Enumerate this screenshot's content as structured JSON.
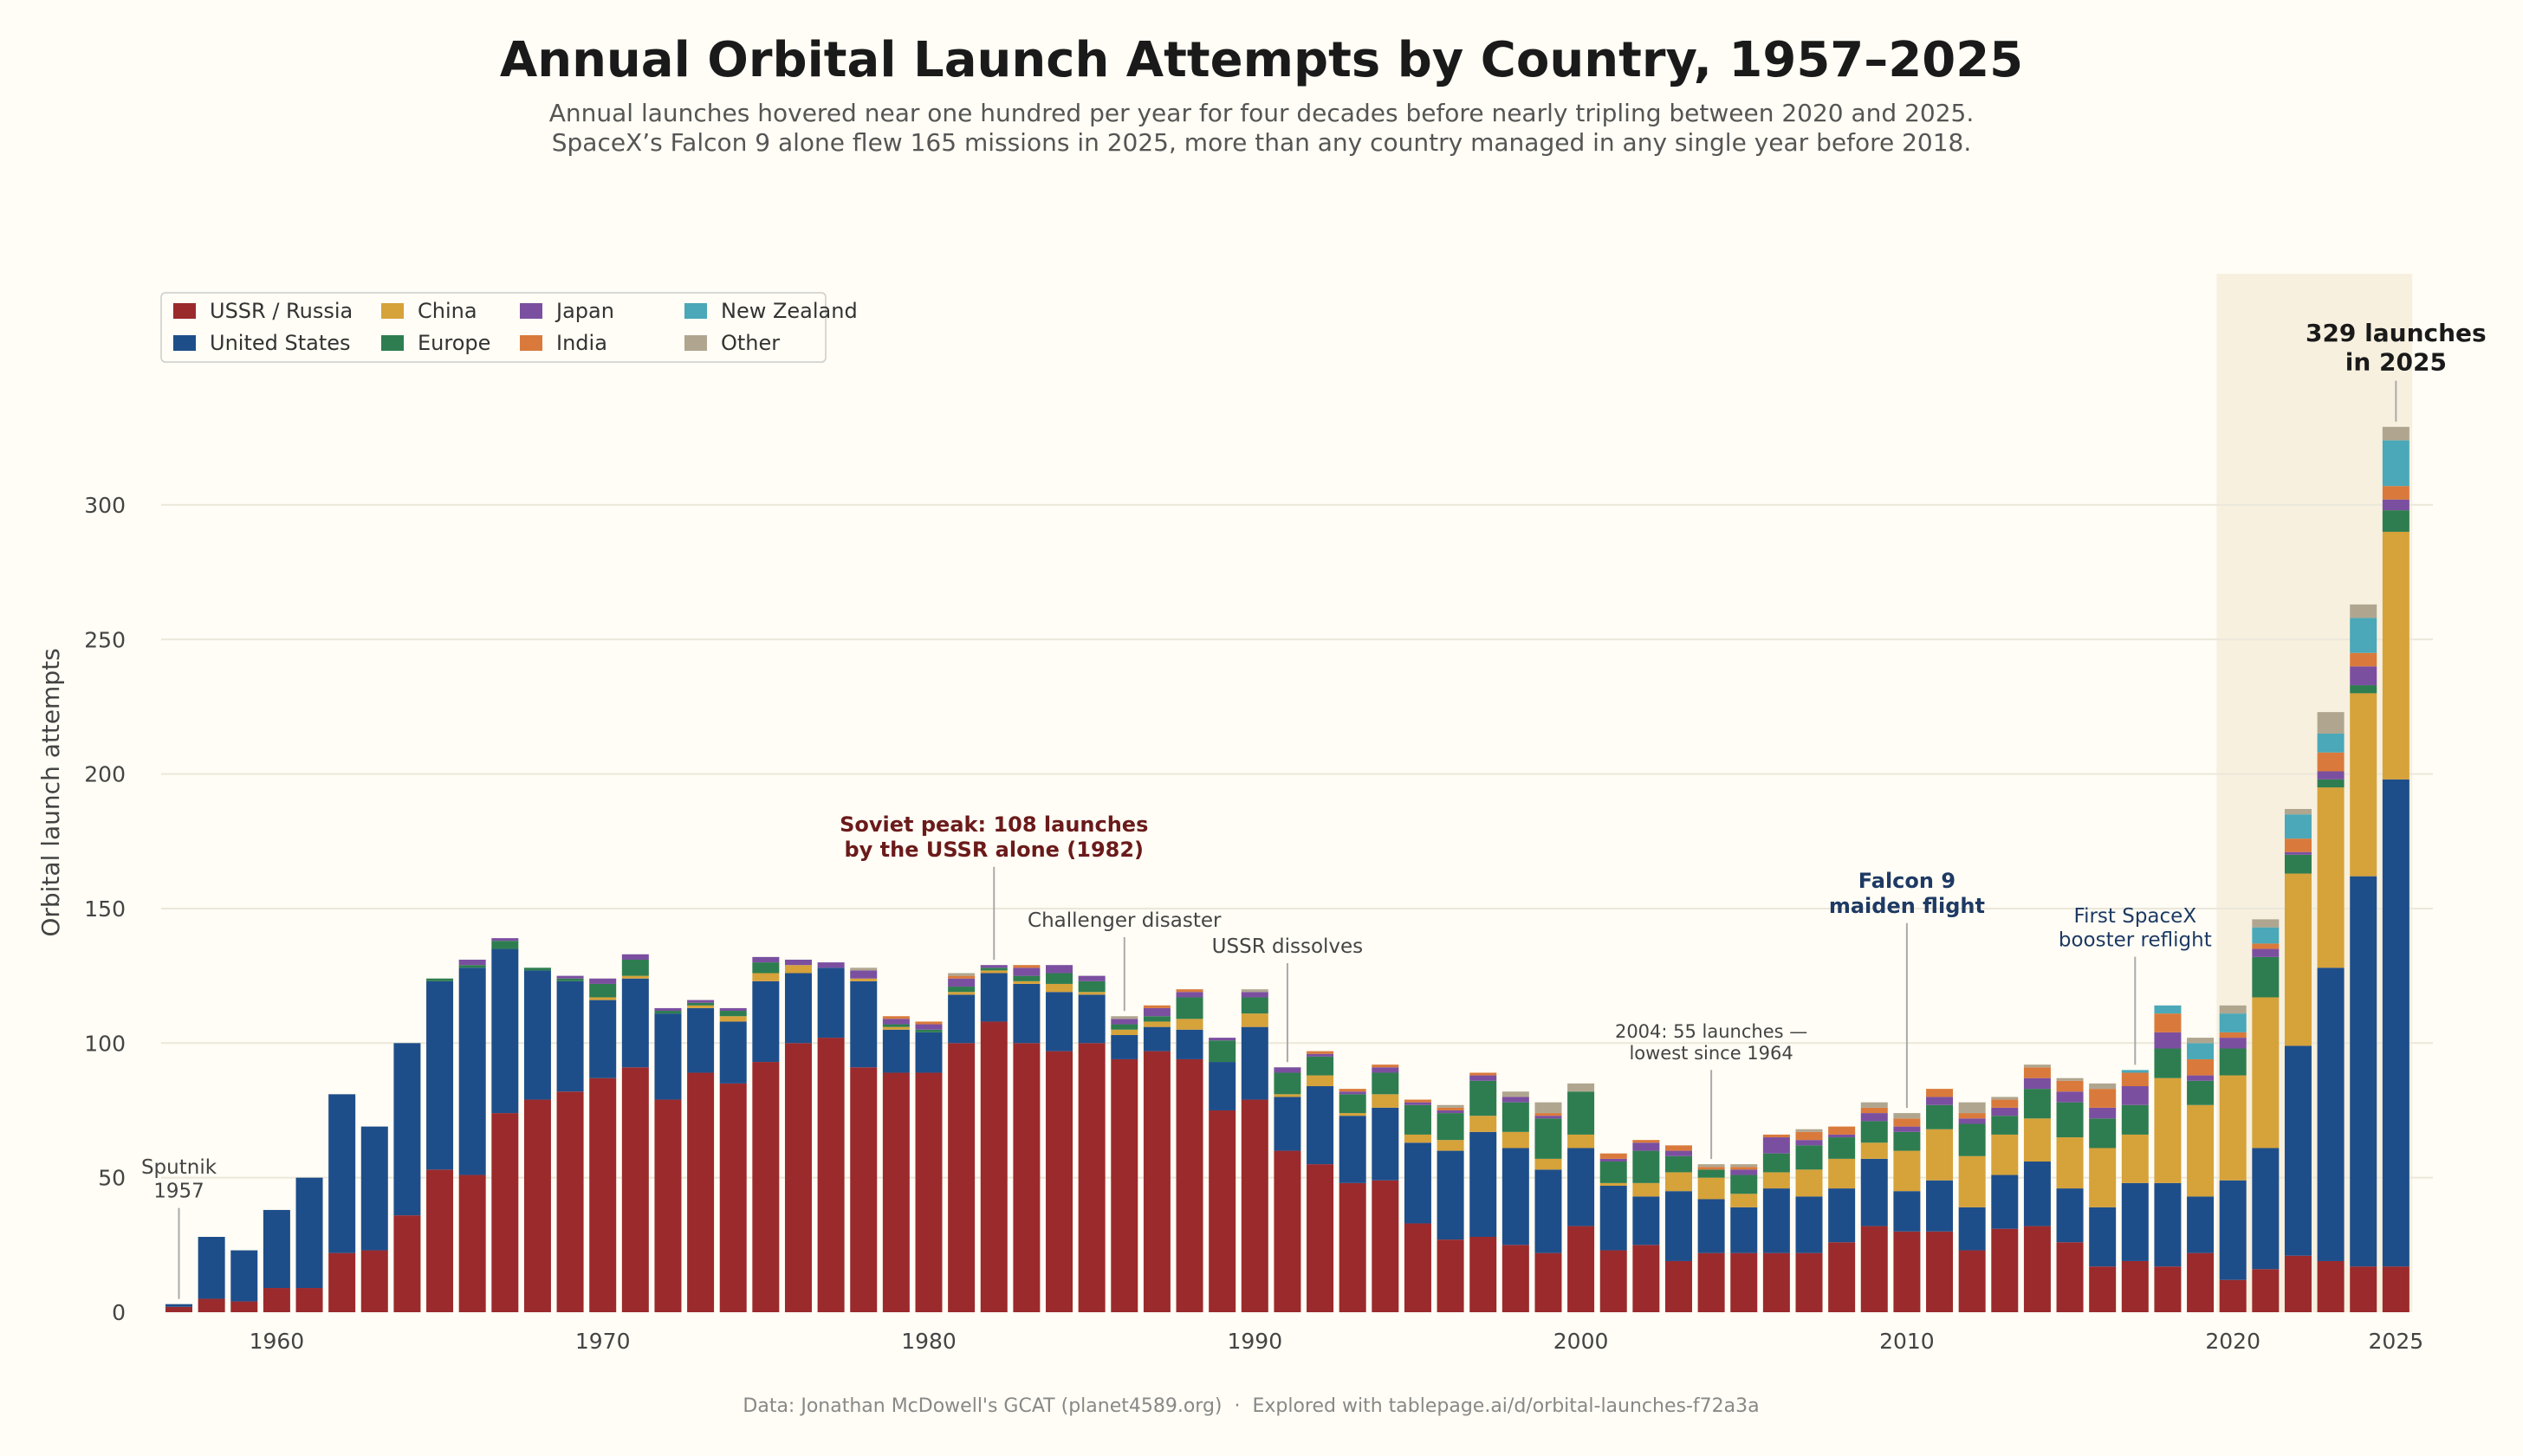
{
  "chart_data": {
    "type": "bar",
    "stacked": true,
    "title": "Annual Orbital Launch Attempts by Country, 1957–2025",
    "subtitle": [
      "Annual launches hovered near one hundred per year for four decades before nearly tripling between 2020 and 2025.",
      "SpaceX’s Falcon 9 alone flew 165 missions in 2025, more than any country managed in any single year before 2018."
    ],
    "ylabel": "Orbital launch attempts",
    "xlabel": "",
    "ylim": [
      0,
      350
    ],
    "xlim": [
      1956.5,
      2025.5
    ],
    "yticks": [
      0,
      50,
      100,
      150,
      200,
      250,
      300
    ],
    "xticks": [
      1960,
      1970,
      1980,
      1990,
      2000,
      2010,
      2020,
      2025
    ],
    "grid": "horizontal",
    "legend_placement": "top-left",
    "highlight_range": [
      2020,
      2025
    ],
    "footer": "Data: Jonathan McDowell's GCAT (planet4589.org)  ·  Explored with tablepage.ai/d/orbital-launches-f72a3a",
    "series": [
      {
        "name": "USSR / Russia",
        "color": "#9b2a2c"
      },
      {
        "name": "United States",
        "color": "#1e4e8a"
      },
      {
        "name": "China",
        "color": "#d6a23a"
      },
      {
        "name": "Europe",
        "color": "#2e7d50"
      },
      {
        "name": "Japan",
        "color": "#7b4fa0"
      },
      {
        "name": "India",
        "color": "#d97a3c"
      },
      {
        "name": "New Zealand",
        "color": "#4aa8b8"
      },
      {
        "name": "Other",
        "color": "#b0a690"
      }
    ],
    "years_start": 1957,
    "values": [
      [
        2,
        1,
        0,
        0,
        0,
        0,
        0,
        0
      ],
      [
        5,
        23,
        0,
        0,
        0,
        0,
        0,
        0
      ],
      [
        4,
        19,
        0,
        0,
        0,
        0,
        0,
        0
      ],
      [
        9,
        29,
        0,
        0,
        0,
        0,
        0,
        0
      ],
      [
        9,
        41,
        0,
        0,
        0,
        0,
        0,
        0
      ],
      [
        22,
        59,
        0,
        0,
        0,
        0,
        0,
        0
      ],
      [
        23,
        46,
        0,
        0,
        0,
        0,
        0,
        0
      ],
      [
        36,
        64,
        0,
        0,
        0,
        0,
        0,
        0
      ],
      [
        53,
        70,
        0,
        1,
        0,
        0,
        0,
        0
      ],
      [
        51,
        77,
        0,
        1,
        2,
        0,
        0,
        0
      ],
      [
        74,
        61,
        0,
        3,
        1,
        0,
        0,
        0
      ],
      [
        79,
        48,
        0,
        1,
        0,
        0,
        0,
        0
      ],
      [
        82,
        41,
        0,
        1,
        1,
        0,
        0,
        0
      ],
      [
        87,
        29,
        1,
        5,
        2,
        0,
        0,
        0
      ],
      [
        91,
        33,
        1,
        6,
        2,
        0,
        0,
        0
      ],
      [
        79,
        32,
        0,
        1,
        1,
        0,
        0,
        0
      ],
      [
        89,
        24,
        1,
        1,
        1,
        0,
        0,
        0
      ],
      [
        85,
        23,
        2,
        2,
        1,
        0,
        0,
        0
      ],
      [
        93,
        30,
        3,
        4,
        2,
        0,
        0,
        0
      ],
      [
        100,
        26,
        3,
        0,
        2,
        0,
        0,
        0
      ],
      [
        102,
        26,
        0,
        0,
        2,
        0,
        0,
        0
      ],
      [
        91,
        32,
        1,
        0,
        3,
        0,
        0,
        1
      ],
      [
        89,
        16,
        1,
        1,
        2,
        1,
        0,
        0
      ],
      [
        89,
        15,
        0,
        1,
        2,
        1,
        0,
        0
      ],
      [
        100,
        18,
        1,
        2,
        3,
        1,
        0,
        1
      ],
      [
        108,
        18,
        1,
        1,
        1,
        0,
        0,
        0
      ],
      [
        100,
        22,
        1,
        2,
        3,
        1,
        0,
        0
      ],
      [
        97,
        22,
        3,
        4,
        3,
        0,
        0,
        0
      ],
      [
        100,
        18,
        1,
        4,
        2,
        0,
        0,
        0
      ],
      [
        94,
        9,
        2,
        2,
        2,
        0,
        0,
        1
      ],
      [
        97,
        9,
        2,
        2,
        3,
        1,
        0,
        0
      ],
      [
        94,
        11,
        4,
        8,
        2,
        1,
        0,
        0
      ],
      [
        75,
        18,
        0,
        8,
        1,
        0,
        0,
        0
      ],
      [
        79,
        27,
        5,
        6,
        2,
        0,
        0,
        1
      ],
      [
        60,
        20,
        1,
        8,
        2,
        0,
        0,
        0
      ],
      [
        55,
        29,
        4,
        7,
        1,
        1,
        0,
        0
      ],
      [
        48,
        25,
        1,
        7,
        1,
        1,
        0,
        0
      ],
      [
        49,
        27,
        5,
        8,
        2,
        1,
        0,
        0
      ],
      [
        33,
        30,
        3,
        11,
        1,
        1,
        0,
        0
      ],
      [
        27,
        33,
        4,
        10,
        1,
        1,
        0,
        1
      ],
      [
        28,
        39,
        6,
        13,
        2,
        1,
        0,
        0
      ],
      [
        25,
        36,
        6,
        11,
        2,
        0,
        0,
        2
      ],
      [
        22,
        31,
        4,
        15,
        1,
        1,
        0,
        4
      ],
      [
        32,
        29,
        5,
        16,
        0,
        0,
        0,
        3
      ],
      [
        23,
        24,
        1,
        8,
        1,
        2,
        0,
        0
      ],
      [
        25,
        18,
        5,
        12,
        3,
        1,
        0,
        0
      ],
      [
        19,
        26,
        7,
        6,
        2,
        2,
        0,
        0
      ],
      [
        22,
        20,
        8,
        3,
        0,
        1,
        0,
        1
      ],
      [
        22,
        17,
        5,
        7,
        2,
        1,
        0,
        1
      ],
      [
        22,
        24,
        6,
        7,
        6,
        1,
        0,
        0
      ],
      [
        22,
        21,
        10,
        9,
        2,
        3,
        0,
        1
      ],
      [
        26,
        20,
        11,
        8,
        1,
        3,
        0,
        0
      ],
      [
        32,
        25,
        6,
        8,
        3,
        2,
        0,
        2
      ],
      [
        30,
        15,
        15,
        7,
        2,
        3,
        0,
        2
      ],
      [
        30,
        19,
        19,
        9,
        3,
        3,
        0,
        0
      ],
      [
        23,
        16,
        19,
        12,
        2,
        2,
        0,
        4
      ],
      [
        31,
        20,
        15,
        7,
        3,
        3,
        0,
        1
      ],
      [
        32,
        24,
        16,
        11,
        4,
        4,
        0,
        1
      ],
      [
        26,
        20,
        19,
        13,
        4,
        4,
        0,
        1
      ],
      [
        17,
        22,
        22,
        11,
        4,
        7,
        0,
        2
      ],
      [
        19,
        29,
        18,
        11,
        7,
        5,
        1,
        0
      ],
      [
        17,
        31,
        39,
        11,
        6,
        7,
        3,
        0
      ],
      [
        22,
        21,
        34,
        9,
        2,
        6,
        6,
        2
      ],
      [
        12,
        37,
        39,
        10,
        4,
        2,
        7,
        3
      ],
      [
        16,
        45,
        56,
        15,
        3,
        2,
        6,
        3
      ],
      [
        21,
        78,
        64,
        7,
        1,
        5,
        9,
        2
      ],
      [
        19,
        109,
        67,
        3,
        3,
        7,
        7,
        8
      ],
      [
        17,
        145,
        68,
        3,
        7,
        5,
        13,
        5
      ],
      [
        17,
        181,
        92,
        8,
        4,
        5,
        17,
        5
      ]
    ],
    "annotations": [
      {
        "year": 1957,
        "value": 3,
        "lines": [
          "Sputnik",
          "1957"
        ],
        "style": "plain"
      },
      {
        "year": 1982,
        "value": 129,
        "lines": [
          "Soviet peak: 108 launches",
          "by the USSR alone (1982)"
        ],
        "style": "soviet"
      },
      {
        "year": 1986,
        "value": 110,
        "lines": [
          "Challenger disaster"
        ],
        "style": "plain"
      },
      {
        "year": 1991,
        "value": 91,
        "lines": [
          "USSR dissolves"
        ],
        "style": "plain"
      },
      {
        "year": 2004,
        "value": 55,
        "lines": [
          "2004: 55 launches —",
          "lowest since 1964"
        ],
        "style": "small"
      },
      {
        "year": 2010,
        "value": 74,
        "lines": [
          "Falcon 9",
          "maiden flight"
        ],
        "style": "falcon"
      },
      {
        "year": 2017,
        "value": 90,
        "lines": [
          "First SpaceX",
          "booster reflight"
        ],
        "style": "blue"
      },
      {
        "year": 2025,
        "value": 329,
        "lines": [
          "329 launches",
          "in 2025"
        ],
        "style": "total"
      }
    ]
  }
}
